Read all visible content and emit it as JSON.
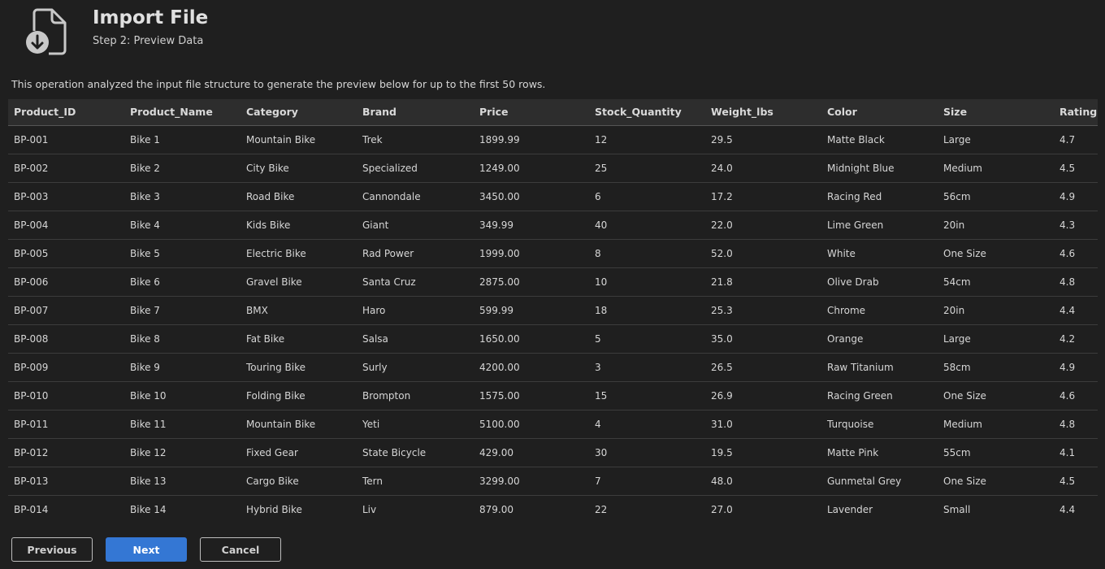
{
  "header": {
    "title": "Import File",
    "subtitle": "Step 2: Preview Data",
    "icon": "file-import-icon"
  },
  "description": "This operation analyzed the input file structure to generate the preview below for up to the first 50 rows.",
  "table": {
    "columns": [
      "Product_ID",
      "Product_Name",
      "Category",
      "Brand",
      "Price",
      "Stock_Quantity",
      "Weight_lbs",
      "Color",
      "Size",
      "Rating"
    ],
    "rows": [
      [
        "BP-001",
        "Bike 1",
        "Mountain Bike",
        "Trek",
        "1899.99",
        "12",
        "29.5",
        "Matte Black",
        "Large",
        "4.7"
      ],
      [
        "BP-002",
        "Bike 2",
        "City Bike",
        "Specialized",
        "1249.00",
        "25",
        "24.0",
        "Midnight Blue",
        "Medium",
        "4.5"
      ],
      [
        "BP-003",
        "Bike 3",
        "Road Bike",
        "Cannondale",
        "3450.00",
        "6",
        "17.2",
        "Racing Red",
        "56cm",
        "4.9"
      ],
      [
        "BP-004",
        "Bike 4",
        "Kids Bike",
        "Giant",
        "349.99",
        "40",
        "22.0",
        "Lime Green",
        "20in",
        "4.3"
      ],
      [
        "BP-005",
        "Bike 5",
        "Electric Bike",
        "Rad Power",
        "1999.00",
        "8",
        "52.0",
        "White",
        "One Size",
        "4.6"
      ],
      [
        "BP-006",
        "Bike 6",
        "Gravel Bike",
        "Santa Cruz",
        "2875.00",
        "10",
        "21.8",
        "Olive Drab",
        "54cm",
        "4.8"
      ],
      [
        "BP-007",
        "Bike 7",
        "BMX",
        "Haro",
        "599.99",
        "18",
        "25.3",
        "Chrome",
        "20in",
        "4.4"
      ],
      [
        "BP-008",
        "Bike 8",
        "Fat Bike",
        "Salsa",
        "1650.00",
        "5",
        "35.0",
        "Orange",
        "Large",
        "4.2"
      ],
      [
        "BP-009",
        "Bike 9",
        "Touring Bike",
        "Surly",
        "4200.00",
        "3",
        "26.5",
        "Raw Titanium",
        "58cm",
        "4.9"
      ],
      [
        "BP-010",
        "Bike 10",
        "Folding Bike",
        "Brompton",
        "1575.00",
        "15",
        "26.9",
        "Racing Green",
        "One Size",
        "4.6"
      ],
      [
        "BP-011",
        "Bike 11",
        "Mountain Bike",
        "Yeti",
        "5100.00",
        "4",
        "31.0",
        "Turquoise",
        "Medium",
        "4.8"
      ],
      [
        "BP-012",
        "Bike 12",
        "Fixed Gear",
        "State Bicycle",
        "429.00",
        "30",
        "19.5",
        "Matte Pink",
        "55cm",
        "4.1"
      ],
      [
        "BP-013",
        "Bike 13",
        "Cargo Bike",
        "Tern",
        "3299.00",
        "7",
        "48.0",
        "Gunmetal Grey",
        "One Size",
        "4.5"
      ],
      [
        "BP-014",
        "Bike 14",
        "Hybrid Bike",
        "Liv",
        "879.00",
        "22",
        "27.0",
        "Lavender",
        "Small",
        "4.4"
      ]
    ]
  },
  "buttons": {
    "previous": "Previous",
    "next": "Next",
    "cancel": "Cancel"
  },
  "colors": {
    "background": "#1f1f1f",
    "header_row": "#2d2d2d",
    "primary": "#3477d4"
  }
}
